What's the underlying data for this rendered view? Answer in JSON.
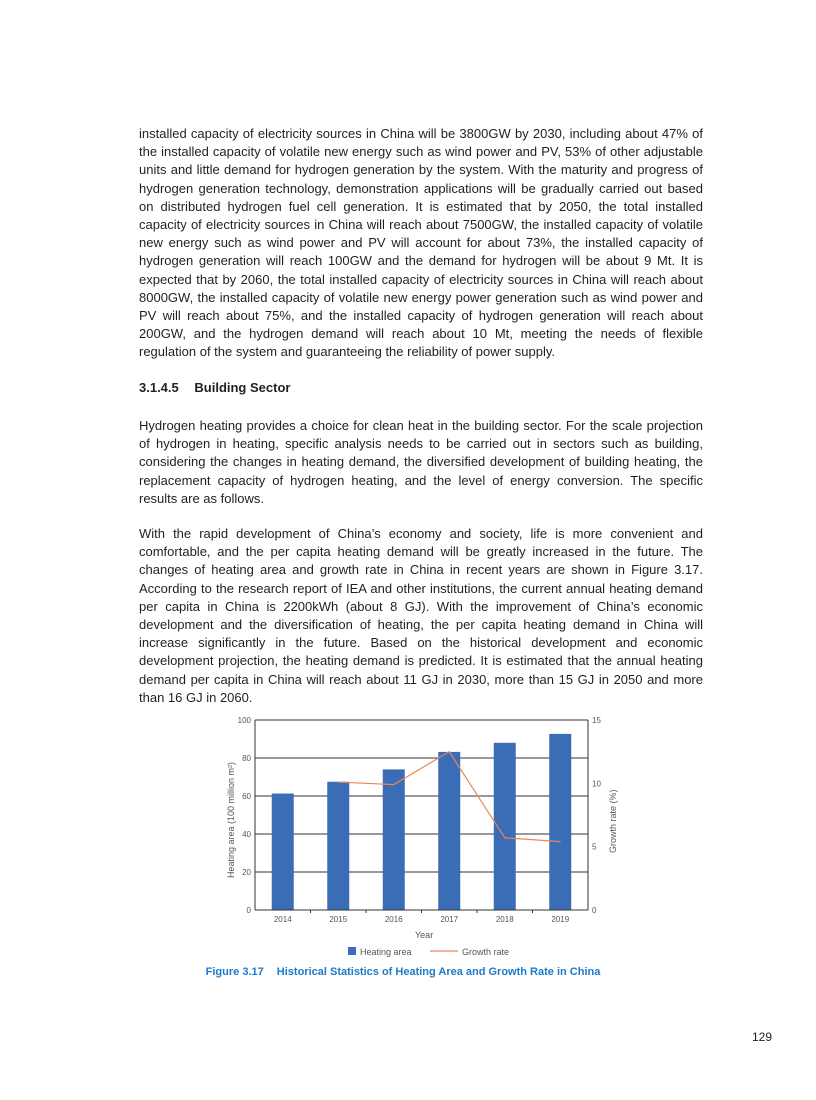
{
  "paragraphs": [
    "installed capacity of electricity sources in China will be 3800GW by 2030, including about 47% of the installed capacity of volatile new energy such as wind power and PV, 53% of other adjustable units and little demand for hydrogen generation by the system. With the maturity and progress of hydrogen generation technology, demonstration applications will be gradually carried out based on distributed hydrogen fuel cell generation. It is estimated that by 2050, the total installed capacity of electricity sources in China will reach about 7500GW, the installed capacity of volatile new energy such as wind power and PV will account for about 73%, the installed capacity of hydrogen generation will reach 100GW and the demand for hydrogen will be about 9 Mt. It is expected that by 2060, the total installed capacity of electricity sources in China will reach about 8000GW, the installed capacity of volatile new energy power generation such as wind power and PV will reach about 75%, and the installed capacity of hydrogen generation will reach about 200GW, and the hydrogen demand will reach about 10 Mt, meeting the needs of flexible regulation of the system and guaranteeing the reliability of power supply.",
    "Hydrogen heating provides a choice for clean heat in the building sector. For the scale projection of hydrogen in heating, specific analysis needs to be carried out in sectors such as building, considering the changes in heating demand, the diversified development of building heating, the replacement capacity of hydrogen heating, and the level of energy conversion. The specific results are as follows.",
    "With the rapid development of China’s economy and society, life is more convenient and comfortable, and the per capita heating demand will be greatly increased in the future. The changes of heating area and growth rate in China in recent years are shown in Figure 3.17. According to the research report of IEA and other institutions, the current annual heating demand per capita in China is 2200kWh (about 8 GJ). With the improvement of China’s economic development and the diversification of heating, the per capita heating demand in China will increase significantly in the future. Based on the historical development and economic development projection, the heating demand is predicted. It is estimated that the annual heating demand per capita in China will reach about 11 GJ in 2030, more than 15 GJ in 2050 and more than 16 GJ in 2060."
  ],
  "section": {
    "number": "3.1.4.5",
    "title": "Building Sector"
  },
  "figure": {
    "number": "Figure 3.17",
    "title": "Historical Statistics of Heating Area and Growth Rate in China"
  },
  "page_number": "129",
  "chart_data": {
    "type": "bar",
    "categories": [
      "2014",
      "2015",
      "2016",
      "2017",
      "2018",
      "2019"
    ],
    "series": [
      {
        "name": "Heating area",
        "type": "bar",
        "axis": "left",
        "color": "#3a6db5",
        "values": [
          61.3,
          67.5,
          74.0,
          83.2,
          88.0,
          92.7
        ]
      },
      {
        "name": "Growth rate",
        "type": "line",
        "axis": "right",
        "color": "#e8875a",
        "values": [
          null,
          10.1,
          9.9,
          12.5,
          5.7,
          5.4
        ]
      }
    ],
    "xlabel": "Year",
    "ylabel": "Heating area (100 million m²)",
    "y2label": "Growth rate (%)",
    "ylim": [
      0,
      100
    ],
    "y2lim": [
      0,
      15
    ],
    "yticks": [
      0,
      20,
      40,
      60,
      80,
      100
    ],
    "y2ticks": [
      0,
      5,
      10,
      15
    ],
    "grid": true,
    "legend": "bottom"
  }
}
